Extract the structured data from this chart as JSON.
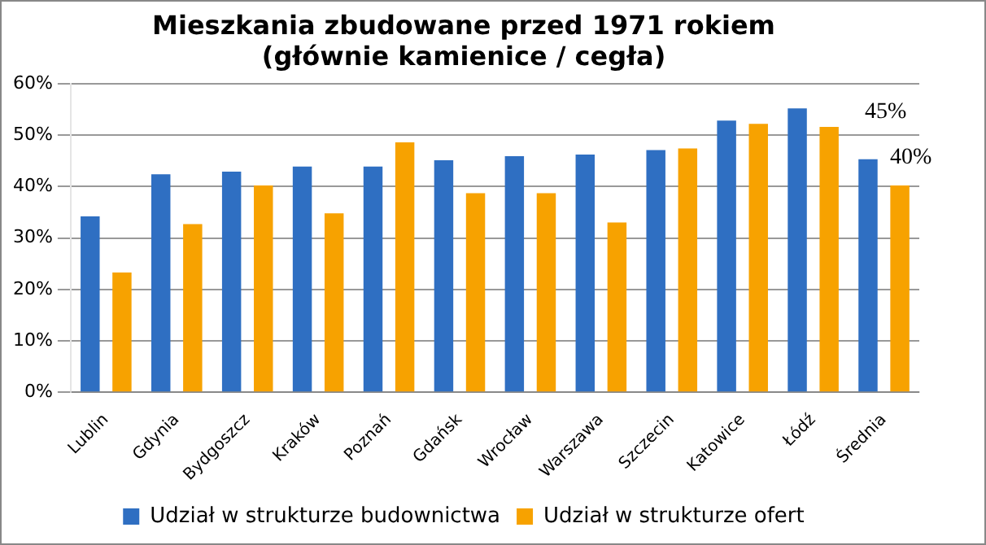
{
  "chart_data": {
    "type": "bar",
    "title": "Mieszkania zbudowane przed 1971 rokiem\n(głównie kamienice / cegła)",
    "categories": [
      "Lublin",
      "Gdynia",
      "Bydgoszcz",
      "Kraków",
      "Poznań",
      "Gdańsk",
      "Wrocław",
      "Warszawa",
      "Szczecin",
      "Katowice",
      "Łódź",
      "Średnia"
    ],
    "series": [
      {
        "name": "Udział w strukturze budownictwa",
        "color": "#2f6fc2",
        "values": [
          34.2,
          42.4,
          42.9,
          43.9,
          43.9,
          45.1,
          45.9,
          46.2,
          47.1,
          52.8,
          55.2,
          45.3
        ],
        "value_labels": [
          null,
          null,
          null,
          null,
          null,
          null,
          null,
          null,
          null,
          null,
          null,
          "45%"
        ]
      },
      {
        "name": "Udział w strukturze ofert",
        "color": "#f7a200",
        "values": [
          23.3,
          32.7,
          40.2,
          34.8,
          48.6,
          38.7,
          38.7,
          33.0,
          47.4,
          52.2,
          51.6,
          40.2
        ],
        "value_labels": [
          null,
          null,
          null,
          null,
          null,
          null,
          null,
          null,
          null,
          null,
          null,
          "40%"
        ]
      }
    ],
    "ylim": [
      0,
      60
    ],
    "yticks": [
      {
        "value": 0,
        "label": "0%"
      },
      {
        "value": 10,
        "label": "10%"
      },
      {
        "value": 20,
        "label": "20%"
      },
      {
        "value": 30,
        "label": "30%"
      },
      {
        "value": 40,
        "label": "40%"
      },
      {
        "value": 50,
        "label": "50%"
      },
      {
        "value": 60,
        "label": "60%"
      }
    ],
    "grid": "y",
    "legend": "bottom"
  }
}
